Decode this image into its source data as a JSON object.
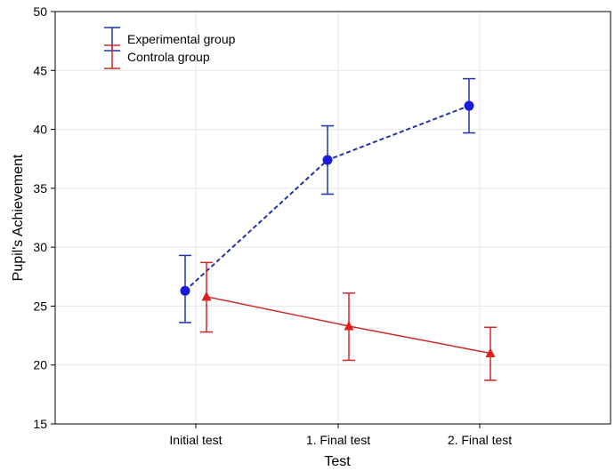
{
  "chart_data": {
    "type": "line",
    "title": "",
    "xlabel": "Test",
    "ylabel": "Pupil's Achievement",
    "categories": [
      "Initial test",
      "1. Final test",
      "2. Final test"
    ],
    "ylim": [
      15,
      50
    ],
    "yticks": [
      15,
      20,
      25,
      30,
      35,
      40,
      45,
      50
    ],
    "grid": true,
    "legend_position": "top-left",
    "series": [
      {
        "name": "Experimental group",
        "values": [
          26.3,
          37.4,
          42.0
        ],
        "err_low": [
          23.6,
          34.5,
          39.7
        ],
        "err_high": [
          29.3,
          40.3,
          44.3
        ],
        "color": "#2233a8",
        "line_style": "dashed",
        "marker": "circle",
        "marker_color": "#1a1adc"
      },
      {
        "name": "Controla group",
        "values": [
          25.8,
          23.3,
          21.0
        ],
        "err_low": [
          22.8,
          20.4,
          18.7
        ],
        "err_high": [
          28.7,
          26.1,
          23.2
        ],
        "color": "#cc2a2a",
        "line_style": "solid",
        "marker": "triangle",
        "marker_color": "#e02020"
      }
    ]
  }
}
